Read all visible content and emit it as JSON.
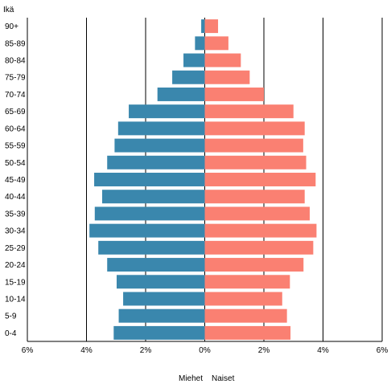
{
  "chart_data": {
    "type": "bar",
    "orientation": "horizontal",
    "layout": "population-pyramid",
    "y_title": "Ikä",
    "categories": [
      "0-4",
      "5-9",
      "10-14",
      "15-19",
      "20-24",
      "25-29",
      "30-34",
      "35-39",
      "40-44",
      "45-49",
      "50-54",
      "55-59",
      "60-64",
      "65-69",
      "70-74",
      "75-79",
      "80-84",
      "85-89",
      "90+"
    ],
    "series": [
      {
        "name": "Miehet",
        "side": "left",
        "color": "#3a87ad",
        "values": [
          3.08,
          2.91,
          2.76,
          2.98,
          3.3,
          3.6,
          3.9,
          3.72,
          3.47,
          3.74,
          3.3,
          3.05,
          2.93,
          2.57,
          1.6,
          1.1,
          0.72,
          0.33,
          0.12
        ]
      },
      {
        "name": "Naiset",
        "side": "right",
        "color": "#fa8072",
        "values": [
          2.9,
          2.78,
          2.62,
          2.88,
          3.34,
          3.67,
          3.78,
          3.55,
          3.38,
          3.75,
          3.43,
          3.33,
          3.38,
          3.0,
          2.0,
          1.52,
          1.22,
          0.8,
          0.45
        ]
      }
    ],
    "x_ticks": [
      -6,
      -4,
      -2,
      0,
      2,
      4,
      6
    ],
    "x_tick_labels": [
      "6%",
      "4%",
      "2%",
      "0%",
      "2%",
      "4%",
      "6%"
    ],
    "xlim": [
      -6,
      6
    ],
    "grid": "vertical",
    "legend": "bottom"
  }
}
